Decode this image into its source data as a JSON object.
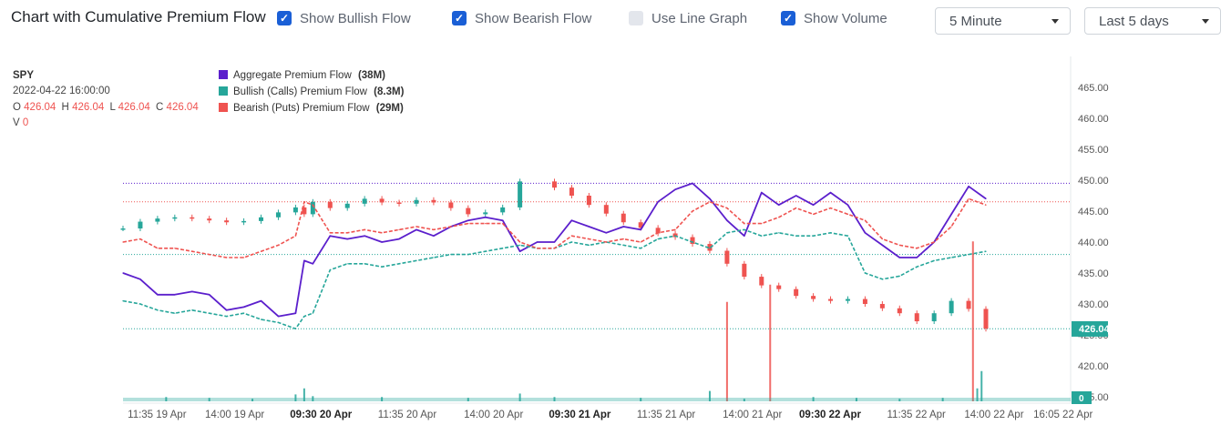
{
  "header": {
    "title": "Chart with Cumulative Premium Flow",
    "checkboxes": [
      {
        "label": "Show Bullish Flow",
        "checked": true
      },
      {
        "label": "Show Bearish Flow",
        "checked": true
      },
      {
        "label": "Use Line Graph",
        "checked": false
      },
      {
        "label": "Show Volume",
        "checked": true
      }
    ],
    "interval": "5 Minute",
    "range": "Last 5 days"
  },
  "colors": {
    "aggregate": "#5b1fcc",
    "bullish": "#26a69a",
    "bearish": "#ef5350",
    "candle_up": "#26a69a",
    "candle_down": "#ef5350",
    "grid_bg": "#ffffff"
  },
  "chart_data": {
    "type": "line",
    "symbol": "SPY",
    "ohlc_readout": {
      "datetime": "2022-04-22 16:00:00",
      "o_label": "O",
      "o": "426.04",
      "h_label": "H",
      "h": "426.04",
      "l_label": "L",
      "l": "426.04",
      "c_label": "C",
      "c": "426.04",
      "v_label": "V",
      "v": "0"
    },
    "legend": [
      {
        "name": "Aggregate Premium Flow",
        "value": "(38M)",
        "color": "#5b1fcc"
      },
      {
        "name": "Bullish (Calls) Premium Flow",
        "value": "(8.3M)",
        "color": "#26a69a"
      },
      {
        "name": "Bearish (Puts) Premium Flow",
        "value": "(29M)",
        "color": "#ef5350"
      }
    ],
    "y_ticks": [
      "465.00",
      "460.00",
      "455.00",
      "450.00",
      "445.00",
      "440.00",
      "435.00",
      "430.00",
      "425.00",
      "420.00",
      "415.00"
    ],
    "ylim": [
      415,
      467
    ],
    "x_tick_labels": [
      "11:35 19 Apr",
      "14:00 19 Apr",
      "09:30 20 Apr",
      "11:35 20 Apr",
      "14:00 20 Apr",
      "09:30 21 Apr",
      "11:35 21 Apr",
      "14:00 21 Apr",
      "09:30 22 Apr",
      "11:35 22 Apr",
      "14:00 22 Apr",
      "16:05 22 Apr"
    ],
    "x_tick_bold": [
      false,
      false,
      true,
      false,
      false,
      true,
      false,
      false,
      true,
      false,
      false,
      false
    ],
    "x_tick_pos": [
      0.05,
      0.14,
      0.24,
      0.34,
      0.44,
      0.54,
      0.64,
      0.74,
      0.83,
      0.93,
      1.02,
      1.1
    ],
    "last_price_label": "426.04",
    "last_price": 426.04,
    "volume_label": "0",
    "series": [
      {
        "name": "SPY",
        "kind": "candles",
        "t": [
          0.0,
          0.02,
          0.04,
          0.06,
          0.08,
          0.1,
          0.12,
          0.14,
          0.16,
          0.18,
          0.2,
          0.21,
          0.22,
          0.24,
          0.26,
          0.28,
          0.3,
          0.32,
          0.34,
          0.36,
          0.38,
          0.4,
          0.42,
          0.44,
          0.46,
          0.5,
          0.52,
          0.54,
          0.56,
          0.58,
          0.6,
          0.62,
          0.64,
          0.66,
          0.68,
          0.7,
          0.72,
          0.74,
          0.76,
          0.78,
          0.8,
          0.82,
          0.84,
          0.86,
          0.88,
          0.9,
          0.92,
          0.94,
          0.96,
          0.98,
          1.0
        ],
        "values": [
          442.2,
          443.3,
          443.8,
          444,
          443.8,
          443.5,
          443.2,
          443.4,
          444,
          444.8,
          445.6,
          444.5,
          446.5,
          445.5,
          446.2,
          447,
          446.4,
          446.2,
          446.8,
          446.4,
          445.5,
          444.5,
          444.8,
          445.6,
          449.8,
          448.8,
          447.5,
          446,
          444.6,
          443.2,
          442.3,
          441.4,
          440.8,
          439.7,
          438.6,
          436.5,
          434.4,
          433,
          432.4,
          431.3,
          430.8,
          430.5,
          430.8,
          430,
          429.3,
          428.5,
          427.2,
          428.5,
          430.5,
          429.2,
          426
        ]
      },
      {
        "name": "Aggregate Premium Flow",
        "kind": "line",
        "t": [
          0.0,
          0.02,
          0.04,
          0.06,
          0.08,
          0.1,
          0.12,
          0.14,
          0.16,
          0.18,
          0.2,
          0.21,
          0.22,
          0.24,
          0.26,
          0.28,
          0.3,
          0.32,
          0.34,
          0.36,
          0.38,
          0.4,
          0.42,
          0.44,
          0.46,
          0.48,
          0.5,
          0.52,
          0.54,
          0.56,
          0.58,
          0.6,
          0.62,
          0.64,
          0.66,
          0.68,
          0.7,
          0.72,
          0.74,
          0.76,
          0.78,
          0.8,
          0.82,
          0.84,
          0.86,
          0.88,
          0.9,
          0.92,
          0.94,
          0.96,
          0.98,
          1.0
        ],
        "values": [
          435,
          434,
          431.5,
          431.5,
          432,
          431.5,
          429,
          429.5,
          430.5,
          428,
          428.5,
          437,
          436.5,
          441,
          440.5,
          441,
          440,
          440.5,
          442,
          441,
          442.5,
          443.5,
          444,
          443.5,
          438.5,
          440,
          440,
          443.5,
          442.5,
          441.5,
          442.5,
          442,
          446.5,
          448.5,
          449.5,
          447,
          443.5,
          441,
          448,
          446,
          447.5,
          446,
          448,
          446,
          441.5,
          439.5,
          437.5,
          437.5,
          440,
          444.5,
          449,
          447
        ]
      },
      {
        "name": "Bullish (Calls) Premium Flow",
        "kind": "line",
        "t": [
          0.0,
          0.02,
          0.04,
          0.06,
          0.08,
          0.1,
          0.12,
          0.14,
          0.16,
          0.18,
          0.2,
          0.21,
          0.22,
          0.24,
          0.26,
          0.28,
          0.3,
          0.32,
          0.34,
          0.36,
          0.38,
          0.4,
          0.42,
          0.44,
          0.46,
          0.48,
          0.5,
          0.52,
          0.54,
          0.56,
          0.58,
          0.6,
          0.62,
          0.64,
          0.66,
          0.68,
          0.7,
          0.72,
          0.74,
          0.76,
          0.78,
          0.8,
          0.82,
          0.84,
          0.86,
          0.88,
          0.9,
          0.92,
          0.94,
          0.96,
          0.98,
          1.0
        ],
        "values": [
          430.5,
          430,
          429,
          428.5,
          429,
          428.5,
          428,
          428.5,
          427.5,
          427,
          426,
          428,
          428.5,
          435.5,
          436.5,
          436.5,
          436,
          436.5,
          437,
          437.5,
          438,
          438,
          438.5,
          439,
          439.5,
          439,
          439,
          440,
          439.5,
          440,
          439.5,
          439,
          440.5,
          441,
          440,
          439,
          441.5,
          442,
          441,
          441.5,
          441,
          441,
          441.5,
          441,
          435,
          434,
          434.5,
          436,
          437,
          437.5,
          438,
          438.5
        ]
      },
      {
        "name": "Bearish (Puts) Premium Flow",
        "kind": "line",
        "t": [
          0.0,
          0.02,
          0.04,
          0.06,
          0.08,
          0.1,
          0.12,
          0.14,
          0.16,
          0.18,
          0.2,
          0.21,
          0.22,
          0.24,
          0.26,
          0.28,
          0.3,
          0.32,
          0.34,
          0.36,
          0.38,
          0.4,
          0.42,
          0.44,
          0.46,
          0.48,
          0.5,
          0.52,
          0.54,
          0.56,
          0.58,
          0.6,
          0.62,
          0.64,
          0.66,
          0.68,
          0.7,
          0.72,
          0.74,
          0.76,
          0.78,
          0.8,
          0.82,
          0.84,
          0.86,
          0.88,
          0.9,
          0.92,
          0.94,
          0.96,
          0.98,
          1.0
        ],
        "values": [
          440,
          440.5,
          439,
          439,
          438.5,
          438,
          437.5,
          437.5,
          438.5,
          439.5,
          441,
          446.5,
          446,
          441.5,
          441.5,
          442,
          441.5,
          442,
          442.5,
          442,
          442.5,
          443,
          443,
          443,
          440,
          439,
          439,
          441,
          440.5,
          440,
          440.5,
          440,
          441.5,
          442,
          445,
          446.5,
          445.5,
          443,
          443,
          444,
          445.5,
          444.5,
          445.5,
          444.5,
          443.5,
          440.5,
          439.5,
          439,
          440,
          442.5,
          447,
          446
        ]
      },
      {
        "name": "Volume",
        "kind": "bars",
        "t": [
          0.05,
          0.1,
          0.15,
          0.2,
          0.21,
          0.22,
          0.3,
          0.4,
          0.46,
          0.5,
          0.6,
          0.68,
          0.7,
          0.72,
          0.75,
          0.8,
          0.85,
          0.9,
          0.95,
          0.985,
          0.99,
          0.995
        ],
        "values": [
          0.5,
          0.4,
          0.3,
          0.8,
          1.5,
          0.6,
          0.5,
          0.4,
          0.9,
          0.5,
          0.4,
          1.2,
          11.5,
          0.3,
          13.5,
          0.5,
          0.4,
          0.3,
          0.4,
          18.5,
          1.5,
          3.5
        ]
      }
    ],
    "ref_lines": [
      449.5,
      446.5,
      438,
      426
    ],
    "grid": false,
    "legend_position": "top-left"
  }
}
